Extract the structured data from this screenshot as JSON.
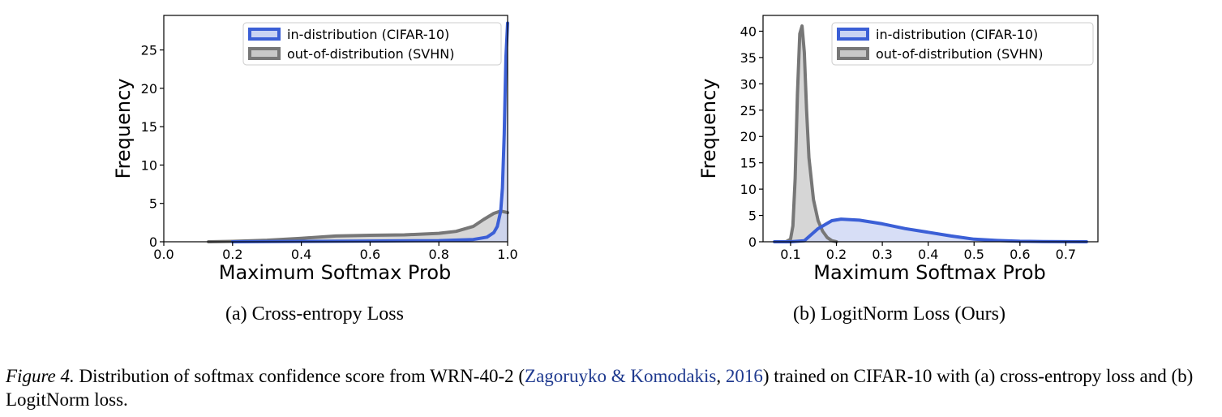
{
  "figure": {
    "label": "Figure 4.",
    "caption_part1": " Distribution of softmax confidence score from WRN-40-2 (",
    "citation_authors": "Zagoruyko & Komodakis",
    "caption_sep": ", ",
    "citation_year": "2016",
    "caption_part2": ") trained on CIFAR-10 with (a) cross-entropy loss and (b) LogitNorm loss."
  },
  "colors": {
    "in_dist": "#3b5fd6",
    "in_fill": "#c9d3f3",
    "ood": "#777777",
    "ood_fill": "#c8c8c8"
  },
  "chart_data": [
    {
      "type": "area",
      "subcaption": "(a) Cross-entropy Loss",
      "title": "",
      "xlabel": "Maximum Softmax Prob",
      "ylabel": "Frequency",
      "xlim": [
        0.0,
        1.0
      ],
      "ylim": [
        0,
        29.5
      ],
      "xticks": [
        0.0,
        0.2,
        0.4,
        0.6,
        0.8,
        1.0
      ],
      "xtick_labels": [
        "0.0",
        "0.2",
        "0.4",
        "0.6",
        "0.8",
        "1.0"
      ],
      "yticks": [
        0,
        5,
        10,
        15,
        20,
        25
      ],
      "ytick_labels": [
        "0",
        "5",
        "10",
        "15",
        "20",
        "25"
      ],
      "legend_position": "top-right",
      "series": [
        {
          "name": "in-distribution (CIFAR-10)",
          "x": [
            0.2,
            0.4,
            0.6,
            0.8,
            0.9,
            0.94,
            0.96,
            0.97,
            0.98,
            0.985,
            0.99,
            0.995,
            1.0
          ],
          "y": [
            0.0,
            0.05,
            0.1,
            0.15,
            0.3,
            0.6,
            1.2,
            2.0,
            4.0,
            7.0,
            14.0,
            24.0,
            28.5
          ]
        },
        {
          "name": "out-of-distribution (SVHN)",
          "x": [
            0.13,
            0.2,
            0.3,
            0.4,
            0.5,
            0.6,
            0.7,
            0.8,
            0.85,
            0.9,
            0.93,
            0.96,
            0.98,
            1.0
          ],
          "y": [
            0.0,
            0.05,
            0.2,
            0.45,
            0.75,
            0.85,
            0.9,
            1.1,
            1.35,
            2.0,
            2.9,
            3.7,
            4.0,
            3.8
          ]
        }
      ]
    },
    {
      "type": "area",
      "subcaption": "(b) LogitNorm Loss (Ours)",
      "title": "",
      "xlabel": "Maximum Softmax Prob",
      "ylabel": "Frequency",
      "xlim": [
        0.04,
        0.77
      ],
      "ylim": [
        0,
        43
      ],
      "xticks": [
        0.1,
        0.2,
        0.3,
        0.4,
        0.5,
        0.6,
        0.7
      ],
      "xtick_labels": [
        "0.1",
        "0.2",
        "0.3",
        "0.4",
        "0.5",
        "0.6",
        "0.7"
      ],
      "yticks": [
        0,
        5,
        10,
        15,
        20,
        25,
        30,
        35,
        40
      ],
      "ytick_labels": [
        "0",
        "5",
        "10",
        "15",
        "20",
        "25",
        "30",
        "35",
        "40"
      ],
      "legend_position": "top-right",
      "series": [
        {
          "name": "in-distribution (CIFAR-10)",
          "x": [
            0.065,
            0.1,
            0.13,
            0.16,
            0.19,
            0.21,
            0.25,
            0.3,
            0.35,
            0.4,
            0.45,
            0.5,
            0.55,
            0.6,
            0.65,
            0.7,
            0.745
          ],
          "y": [
            0.0,
            0.0,
            0.2,
            2.5,
            4.0,
            4.3,
            4.1,
            3.4,
            2.5,
            1.8,
            1.1,
            0.5,
            0.25,
            0.1,
            0.05,
            0.02,
            0.0
          ]
        },
        {
          "name": "out-of-distribution (SVHN)",
          "x": [
            0.09,
            0.1,
            0.105,
            0.11,
            0.115,
            0.12,
            0.125,
            0.13,
            0.135,
            0.14,
            0.15,
            0.16,
            0.17,
            0.18,
            0.19,
            0.2
          ],
          "y": [
            0.0,
            0.5,
            3.0,
            12.0,
            28.0,
            39.5,
            41.0,
            36.0,
            25.0,
            16.0,
            8.0,
            4.0,
            2.0,
            0.8,
            0.2,
            0.0
          ]
        }
      ]
    }
  ]
}
